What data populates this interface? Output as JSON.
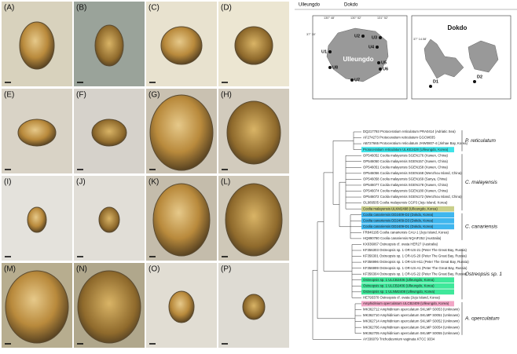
{
  "panels": [
    "(A)",
    "(B)",
    "(C)",
    "(D)",
    "(E)",
    "(F)",
    "(G)",
    "(H)",
    "(I)",
    "(J)",
    "(K)",
    "(L)",
    "(M)",
    "(N)",
    "(O)",
    "(P)"
  ],
  "map": {
    "titles": [
      "Ulleungdo",
      "Dokdo"
    ],
    "islands": [
      "Ulleungdo",
      "Dokdo"
    ],
    "sites": [
      "U1",
      "U2",
      "U3",
      "U4",
      "U5",
      "U6",
      "U7",
      "U8",
      "D1",
      "D2"
    ],
    "coords": [
      "130° 48'",
      "130° 52'",
      "131° 52'",
      "37° 30'",
      "37° 14.58'"
    ]
  },
  "tree": {
    "taxa": [
      {
        "label": "DQ217793 Protoceratium reticulatum PRA0414 (Adriatic Sea)"
      },
      {
        "label": "AF274273 Protoceratium reticulatum GGCM035"
      },
      {
        "label": "AB727665 Protoceratium reticulatum JHW0807-4 (Jinhae Bay, Korea)"
      },
      {
        "label": "Protoceratium reticulatum ULKE2428 (Ulleungdo, Korea)",
        "highlight": "#3fe3e8"
      },
      {
        "label": "OP546052 Coolia malayensis SGEN176 (Xuwen, China)"
      },
      {
        "label": "OP546050 Coolia malayensis SGEN157 (Xuwen, China)"
      },
      {
        "label": "OP546051 Coolia malayensis SGEN158 (Xuwen, China)"
      },
      {
        "label": "OP546056 Coolia malayensis SGEN168 (Wenzhou Island, China)"
      },
      {
        "label": "OP546058 Coolia malayensis SGEN169 (Sanya, China)"
      },
      {
        "label": "OP546077 Coolia malayensis SGEN178 (Xuwen, China)"
      },
      {
        "label": "OP546074 Coolia malayensis SGEN180 (Xuwen, China)"
      },
      {
        "label": "OP546072 Coolia malayensis SGEN172 (Wenzhou Island, China)"
      },
      {
        "label": "OL989505 Coolia malayensis CGP3 (Jeju Island, Korea)"
      },
      {
        "label": "Coolia malayensis ULKM2498 (Ulleungdo, Korea)",
        "highlight": "#c9cf8a"
      },
      {
        "label": "Coolia canariensis DD2409-D2 (Dokdo, Korea)",
        "highlight": "#3fb6ee"
      },
      {
        "label": "Coolia canariensis DD2409-D3 (Dokdo, Korea)",
        "highlight": "#3fb6ee"
      },
      {
        "label": "Coolia canariensis DD2409-D1 (Dokdo, Korea)",
        "highlight": "#3fb6ee"
      },
      {
        "label": "FR846195 Coolia canariensis CAU-1 (Jeju Island, Korea)"
      },
      {
        "label": "HQ890780 Coolia canariensis NQAIF252 (Australia)"
      },
      {
        "label": "KX036067 Ostreopsis cf. ovata HER27 (Australia)"
      },
      {
        "label": "KF356303 Ostreopsis sp. 1 OR-US-21 (Peter The Great Bay, Russia)"
      },
      {
        "label": "KF356301 Ostreopsis sp. 1 OR-US-20 (Peter The Great Bay, Russia)"
      },
      {
        "label": "KF356996 Ostreopsis sp. 1 OR-US-H11 (Peter The Great Bay, Russia)"
      },
      {
        "label": "KF356999 Ostreopsis sp. 1 OR-US-A1 (Peter The Great Bay, Russia)"
      },
      {
        "label": "KF356304 Ostreopsis sp. 1 OR-US-22 (Peter The Great Bay, Russia)"
      },
      {
        "label": "Ostreopsis sp. 1 ULCB2406 (Ulleungdo, Korea)",
        "highlight": "#3ee89a"
      },
      {
        "label": "Ostreopsis sp. 1 ULCB2406 (Ulleungdo, Korea)",
        "highlight": "#3ee89a"
      },
      {
        "label": "Ostreopsis sp. 1 ULNM2408 (Ulleungdo, Korea)",
        "highlight": "#3ee89a"
      },
      {
        "label": "HE793370 Ostreopsis cf. ovata (Jeju Island, Korea)"
      },
      {
        "label": "Amphidinium operculatum ULCB2409 (Ulleungdo, Korea)",
        "highlight": "#f2a6c6"
      },
      {
        "label": "MK362712 Amphidinium operculatum SKLMP S0053 (Unknown)"
      },
      {
        "label": "MK362710 Amphidinium operculatum SKLMP S0051 (Unknown)"
      },
      {
        "label": "MK362714 Amphidinium operculatum SKLMP S0052 (Unknown)"
      },
      {
        "label": "MK362706 Amphidinium operculatum SKLMP S0054 (Unknown)"
      },
      {
        "label": "MK362705 Amphidinium operculatum SKLMP S0055 (Unknown)"
      },
      {
        "label": "AY336079 Trichodesmium vaginata KTCC 9334"
      }
    ],
    "clades": [
      "P. reticulatum",
      "C. malayensis",
      "C. canariensis",
      "Ostreopsis sp. 1",
      "A. operculatum"
    ]
  }
}
